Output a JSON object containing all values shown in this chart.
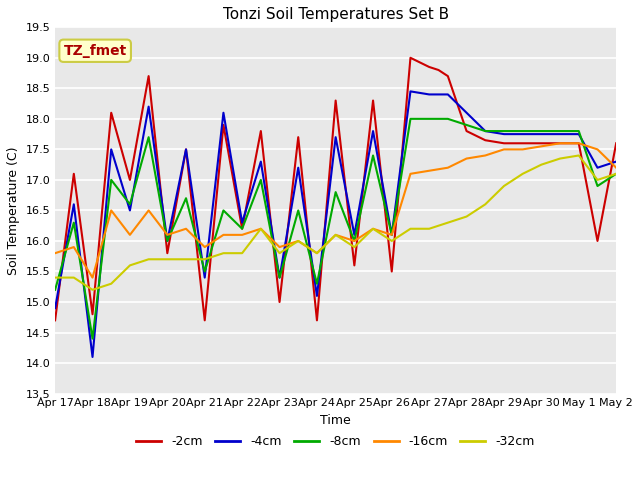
{
  "title": "Tonzi Soil Temperatures Set B",
  "xlabel": "Time",
  "ylabel": "Soil Temperature (C)",
  "ylim": [
    13.5,
    19.5
  ],
  "xlim": [
    0,
    15
  ],
  "fig_bg": "#ffffff",
  "plot_bg": "#e8e8e8",
  "annotation_text": "TZ_fmet",
  "annotation_bg": "#ffffcc",
  "annotation_border": "#cccc44",
  "annotation_color": "#aa0000",
  "series_order": [
    "-2cm",
    "-4cm",
    "-8cm",
    "-16cm",
    "-32cm"
  ],
  "series": {
    "-2cm": {
      "color": "#cc0000",
      "x": [
        0,
        0.5,
        1,
        1.5,
        2,
        2.5,
        3,
        3.5,
        4,
        4.5,
        5,
        5.5,
        6,
        6.5,
        7,
        7.5,
        8,
        8.5,
        9,
        9.5,
        10,
        10.25,
        10.5,
        11,
        11.5,
        12,
        12.5,
        13,
        13.5,
        14,
        14.5,
        15
      ],
      "y": [
        14.7,
        17.1,
        14.8,
        18.1,
        17.0,
        18.7,
        15.8,
        17.5,
        14.7,
        17.9,
        16.2,
        17.8,
        15.0,
        17.7,
        14.7,
        18.3,
        15.6,
        18.3,
        15.5,
        19.0,
        18.85,
        18.8,
        18.7,
        17.8,
        17.65,
        17.6,
        17.6,
        17.6,
        17.6,
        17.6,
        16.0,
        17.6
      ]
    },
    "-4cm": {
      "color": "#0000cc",
      "x": [
        0,
        0.5,
        1,
        1.5,
        2,
        2.5,
        3,
        3.5,
        4,
        4.5,
        5,
        5.5,
        6,
        6.5,
        7,
        7.5,
        8,
        8.5,
        9,
        9.5,
        10,
        10.5,
        11,
        11.5,
        12,
        12.5,
        13,
        13.5,
        14,
        14.5,
        15
      ],
      "y": [
        14.9,
        16.6,
        14.1,
        17.5,
        16.5,
        18.2,
        16.0,
        17.5,
        15.4,
        18.1,
        16.3,
        17.3,
        15.4,
        17.2,
        15.1,
        17.7,
        16.1,
        17.8,
        16.1,
        18.45,
        18.4,
        18.4,
        18.1,
        17.8,
        17.75,
        17.75,
        17.75,
        17.75,
        17.75,
        17.2,
        17.3
      ]
    },
    "-8cm": {
      "color": "#00aa00",
      "x": [
        0,
        0.5,
        1,
        1.5,
        2,
        2.5,
        3,
        3.5,
        4,
        4.5,
        5,
        5.5,
        6,
        6.5,
        7,
        7.5,
        8,
        8.5,
        9,
        9.5,
        10,
        10.5,
        11,
        11.5,
        12,
        12.5,
        13,
        13.5,
        14,
        14.5,
        15
      ],
      "y": [
        15.2,
        16.3,
        14.4,
        17.0,
        16.6,
        17.7,
        16.0,
        16.7,
        15.5,
        16.5,
        16.2,
        17.0,
        15.4,
        16.5,
        15.3,
        16.8,
        16.0,
        17.4,
        16.1,
        18.0,
        18.0,
        18.0,
        17.9,
        17.8,
        17.8,
        17.8,
        17.8,
        17.8,
        17.8,
        16.9,
        17.1
      ]
    },
    "-16cm": {
      "color": "#ff8800",
      "x": [
        0,
        0.5,
        1,
        1.5,
        2,
        2.5,
        3,
        3.5,
        4,
        4.5,
        5,
        5.5,
        6,
        6.5,
        7,
        7.5,
        8,
        8.5,
        9,
        9.5,
        10,
        10.5,
        11,
        11.5,
        12,
        12.5,
        13,
        13.5,
        14,
        14.5,
        15
      ],
      "y": [
        15.8,
        15.9,
        15.4,
        16.5,
        16.1,
        16.5,
        16.1,
        16.2,
        15.9,
        16.1,
        16.1,
        16.2,
        15.9,
        16.0,
        15.8,
        16.1,
        16.0,
        16.2,
        16.1,
        17.1,
        17.15,
        17.2,
        17.35,
        17.4,
        17.5,
        17.5,
        17.55,
        17.6,
        17.6,
        17.5,
        17.2
      ]
    },
    "-32cm": {
      "color": "#cccc00",
      "x": [
        0,
        0.5,
        1,
        1.5,
        2,
        2.5,
        3,
        3.5,
        4,
        4.5,
        5,
        5.5,
        6,
        6.5,
        7,
        7.5,
        8,
        8.5,
        9,
        9.5,
        10,
        10.5,
        11,
        11.5,
        12,
        12.5,
        13,
        13.5,
        14,
        14.5,
        15
      ],
      "y": [
        15.4,
        15.4,
        15.2,
        15.3,
        15.6,
        15.7,
        15.7,
        15.7,
        15.7,
        15.8,
        15.8,
        16.2,
        15.8,
        16.0,
        15.8,
        16.1,
        15.9,
        16.2,
        16.0,
        16.2,
        16.2,
        16.3,
        16.4,
        16.6,
        16.9,
        17.1,
        17.25,
        17.35,
        17.4,
        17.0,
        17.1
      ]
    }
  },
  "xtick_labels": [
    "Apr 17",
    "Apr 18",
    "Apr 19",
    "Apr 20",
    "Apr 21",
    "Apr 22",
    "Apr 23",
    "Apr 24",
    "Apr 25",
    "Apr 26",
    "Apr 27",
    "Apr 28",
    "Apr 29",
    "Apr 30",
    "May 1",
    "May 2"
  ],
  "xtick_positions": [
    0,
    1,
    2,
    3,
    4,
    5,
    6,
    7,
    8,
    9,
    10,
    11,
    12,
    13,
    14,
    15
  ],
  "ytick_values": [
    13.5,
    14.0,
    14.5,
    15.0,
    15.5,
    16.0,
    16.5,
    17.0,
    17.5,
    18.0,
    18.5,
    19.0,
    19.5
  ],
  "ytick_labels": [
    "13.5",
    "14.0",
    "14.5",
    "15.0",
    "15.5",
    "16.0",
    "16.5",
    "17.0",
    "17.5",
    "18.0",
    "18.5",
    "19.0",
    "19.5"
  ],
  "legend_labels": [
    "-2cm",
    "-4cm",
    "-8cm",
    "-16cm",
    "-32cm"
  ],
  "legend_colors": [
    "#cc0000",
    "#0000cc",
    "#00aa00",
    "#ff8800",
    "#cccc00"
  ],
  "title_fontsize": 11,
  "tick_fontsize": 8,
  "axis_label_fontsize": 9,
  "linewidth": 1.5
}
